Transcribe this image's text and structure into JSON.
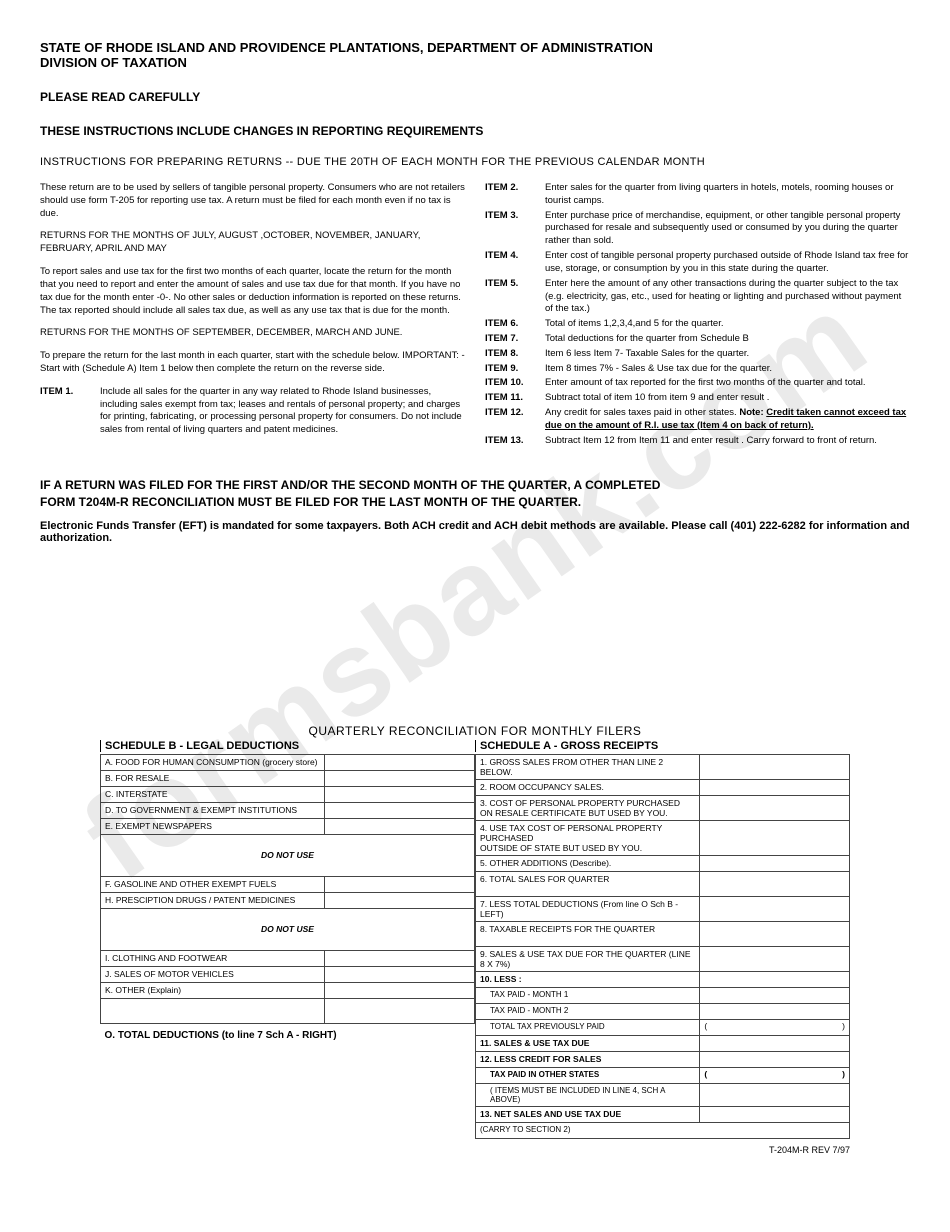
{
  "watermark": "formsbank.com",
  "header": {
    "line1": "STATE OF RHODE ISLAND AND PROVIDENCE PLANTATIONS, DEPARTMENT OF ADMINISTRATION",
    "line2": "DIVISION OF TAXATION",
    "read": "PLEASE READ CAREFULLY",
    "changes": "THESE INSTRUCTIONS INCLUDE CHANGES IN REPORTING REQUIREMENTS",
    "instr": "INSTRUCTIONS FOR PREPARING RETURNS -- DUE THE 20TH OF EACH MONTH FOR THE PREVIOUS CALENDAR MONTH"
  },
  "left": {
    "p1": "These return are to be used by sellers of tangible personal property. Consumers who are not retailers should use form T-205 for reporting use tax. A return must be filed for each month even if no tax is due.",
    "p2": "RETURNS FOR THE MONTHS OF JULY, AUGUST ,OCTOBER, NOVEMBER, JANUARY, FEBRUARY, APRIL AND MAY",
    "p3": "To report sales and use tax for the first two months of each quarter, locate the return for the month that you need to report and enter the amount of sales and use tax due for that month. If you have no tax due for the month enter -0-. No other sales or deduction information is reported on these returns. The tax reported should include all sales tax due, as well as any use tax that is due for the month.",
    "p4": "RETURNS FOR THE MONTHS OF SEPTEMBER, DECEMBER, MARCH AND JUNE.",
    "p5": "To prepare the return for the last month in each quarter, start with the schedule below. IMPORTANT:  - Start with (Schedule A) Item 1 below then complete the return on the reverse side.",
    "item1_label": "ITEM 1.",
    "item1_text": "Include all sales for the quarter in any way related to Rhode Island businesses, including sales exempt from tax; leases and rentals of personal property; and charges for printing, fabricating, or processing personal property for consumers. Do not include sales from rental of living quarters and patent medicines."
  },
  "right_items": [
    {
      "label": "ITEM 2.",
      "text": "Enter sales for the quarter from living quarters in hotels, motels, rooming houses or tourist camps."
    },
    {
      "label": "ITEM 3.",
      "text": "Enter purchase price of merchandise, equipment, or other tangible personal property purchased for resale and subsequently used or consumed by you during the quarter rather than sold."
    },
    {
      "label": "ITEM 4.",
      "text": "Enter cost of tangible personal property purchased outside of Rhode Island tax free for use, storage, or consumption by you in this state during the quarter."
    },
    {
      "label": "ITEM 5.",
      "text": "Enter here the amount of any other transactions during the quarter subject to the tax (e.g. electricity, gas, etc., used for heating or lighting and purchased without payment of the tax.)"
    },
    {
      "label": "ITEM 6.",
      "text": "Total of items 1,2,3,4,and 5 for the quarter."
    },
    {
      "label": "ITEM 7.",
      "text": "Total deductions for the quarter from Schedule B"
    },
    {
      "label": "ITEM 8.",
      "text": "Item 6 less Item 7- Taxable Sales for the quarter."
    },
    {
      "label": "ITEM 9.",
      "text": "Item 8 times 7% - Sales & Use tax due for the quarter."
    },
    {
      "label": "ITEM 10.",
      "text": "Enter amount of tax reported for the first two months of the quarter and total."
    },
    {
      "label": "ITEM 11.",
      "text": "Subtract total of item 10 from item 9 and enter result ."
    },
    {
      "label": "ITEM 12.",
      "text": "Any credit for sales taxes paid in other states.",
      "note": "Note:",
      "u": "Credit taken cannot exceed tax due on the amount of R.I. use tax (Item 4 on back of return)."
    },
    {
      "label": "ITEM 13.",
      "text": "Subtract Item 12 from Item 11 and enter result . Carry forward to front of return."
    }
  ],
  "big_note": {
    "l1": "IF A RETURN WAS FILED FOR THE FIRST AND/OR THE SECOND  MONTH OF THE QUARTER, A COMPLETED",
    "l2": "FORM T204M-R RECONCILIATION  MUST BE FILED FOR THE LAST MONTH OF THE QUARTER."
  },
  "eft": "Electronic Funds Transfer (EFT) is mandated for some taxpayers. Both ACH credit and ACH debit methods are available. Please call (401) 222-6282 for information and authorization.",
  "recon_title": "QUARTERLY RECONCILIATION FOR MONTHLY FILERS",
  "schedB": {
    "title": "SCHEDULE B - LEGAL DEDUCTIONS",
    "rows": [
      "A. FOOD FOR HUMAN CONSUMPTION (grocery store)",
      "B. FOR RESALE",
      "C. INTERSTATE",
      "D. TO GOVERNMENT & EXEMPT INSTITUTIONS",
      "E. EXEMPT NEWSPAPERS"
    ],
    "do_not_use": "DO NOT USE",
    "rows2": [
      "F. GASOLINE AND OTHER EXEMPT FUELS",
      "H. PRESCIPTION DRUGS / PATENT MEDICINES"
    ],
    "rows3": [
      "I. CLOTHING AND FOOTWEAR",
      "J. SALES OF MOTOR VEHICLES",
      "K. OTHER (Explain)"
    ],
    "blank_row": "",
    "total": "O. TOTAL DEDUCTIONS (to line 7 Sch A - RIGHT)"
  },
  "schedA": {
    "title": "SCHEDULE A - GROSS RECEIPTS",
    "rows": [
      "1. GROSS SALES FROM OTHER THAN LINE 2 BELOW.",
      "2. ROOM OCCUPANCY SALES.",
      "3. COST OF PERSONAL PROPERTY PURCHASED\n    ON RESALE CERTIFICATE BUT USED BY YOU.",
      "4. USE TAX  COST OF PERSONAL PROPERTY PURCHASED\n    OUTSIDE OF STATE BUT USED BY YOU.",
      "5. OTHER ADDITIONS (Describe).",
      "6. TOTAL SALES FOR QUARTER",
      "7. LESS TOTAL DEDUCTIONS (From line O Sch B - LEFT)",
      "8. TAXABLE RECEIPTS FOR THE QUARTER",
      "9. SALES & USE TAX DUE FOR THE QUARTER     (LINE 8 X 7%)"
    ],
    "less_header": "10. LESS :",
    "less_rows": [
      "TAX PAID -  MONTH 1",
      "TAX PAID -  MONTH 2",
      "TOTAL TAX  PREVIOUSLY PAID"
    ],
    "r11": "11. SALES & USE TAX  DUE",
    "r12": "12.   LESS CREDIT FOR SALES",
    "r12b": "TAX PAID IN OTHER STATES",
    "r12c": "( ITEMS  MUST  BE  INCLUDED IN LINE 4, SCH A  ABOVE)",
    "r13": "13. NET SALES AND USE TAX DUE",
    "r13b": "(CARRY TO SECTION 2)"
  },
  "footer": "T-204M-R    REV 7/97"
}
